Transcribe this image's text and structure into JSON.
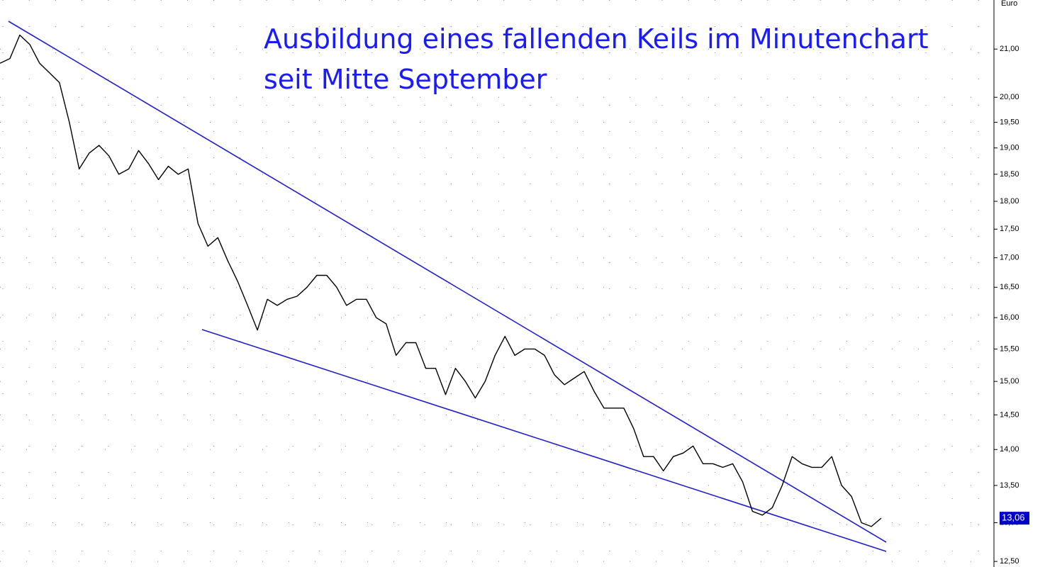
{
  "chart_data": {
    "type": "line",
    "title_lines": [
      "Ausbildung eines fallenden Keils im Minutenchart",
      "seit Mitte September"
    ],
    "y_label": "Euro",
    "log_scale": true,
    "grid": true,
    "color": "#000000",
    "ylim": [
      12.43,
      22.07
    ],
    "yticks": [
      {
        "value": 21,
        "label": "21,00"
      },
      {
        "value": 20,
        "label": "20,00"
      },
      {
        "value": 19.5,
        "label": "19,50"
      },
      {
        "value": 19,
        "label": "19,00"
      },
      {
        "value": 18.5,
        "label": "18,50"
      },
      {
        "value": 18,
        "label": "18,00"
      },
      {
        "value": 17.5,
        "label": "17,50"
      },
      {
        "value": 17,
        "label": "17,00"
      },
      {
        "value": 16.5,
        "label": "16,50"
      },
      {
        "value": 16,
        "label": "16,00"
      },
      {
        "value": 15.5,
        "label": "15,50"
      },
      {
        "value": 15,
        "label": "15,00"
      },
      {
        "value": 14.5,
        "label": "14,50"
      },
      {
        "value": 14,
        "label": "14,00"
      },
      {
        "value": 13.5,
        "label": "13,50"
      },
      {
        "value": 13,
        "label": "13,00"
      },
      {
        "value": 12.5,
        "label": "12,50"
      }
    ],
    "current_price": {
      "value": 13.06,
      "label": "13,06"
    },
    "values": [
      20.7,
      20.8,
      21.3,
      21.1,
      20.7,
      20.5,
      20.3,
      19.5,
      18.6,
      18.9,
      19.05,
      18.85,
      18.5,
      18.6,
      18.95,
      18.7,
      18.4,
      18.65,
      18.5,
      18.6,
      17.6,
      17.2,
      17.35,
      16.95,
      16.6,
      16.2,
      15.8,
      16.3,
      16.2,
      16.3,
      16.35,
      16.5,
      16.7,
      16.7,
      16.5,
      16.2,
      16.3,
      16.3,
      16.0,
      15.9,
      15.4,
      15.6,
      15.6,
      15.2,
      15.2,
      14.8,
      15.2,
      15.0,
      14.75,
      15.0,
      15.4,
      15.7,
      15.4,
      15.5,
      15.5,
      15.4,
      15.1,
      14.95,
      15.05,
      15.15,
      14.85,
      14.6,
      14.6,
      14.6,
      14.3,
      13.9,
      13.9,
      13.7,
      13.9,
      13.95,
      14.05,
      13.8,
      13.8,
      13.75,
      13.8,
      13.55,
      13.15,
      13.1,
      13.2,
      13.5,
      13.9,
      13.8,
      13.75,
      13.75,
      13.9,
      13.5,
      13.35,
      13.0,
      12.95,
      13.06
    ]
  }
}
